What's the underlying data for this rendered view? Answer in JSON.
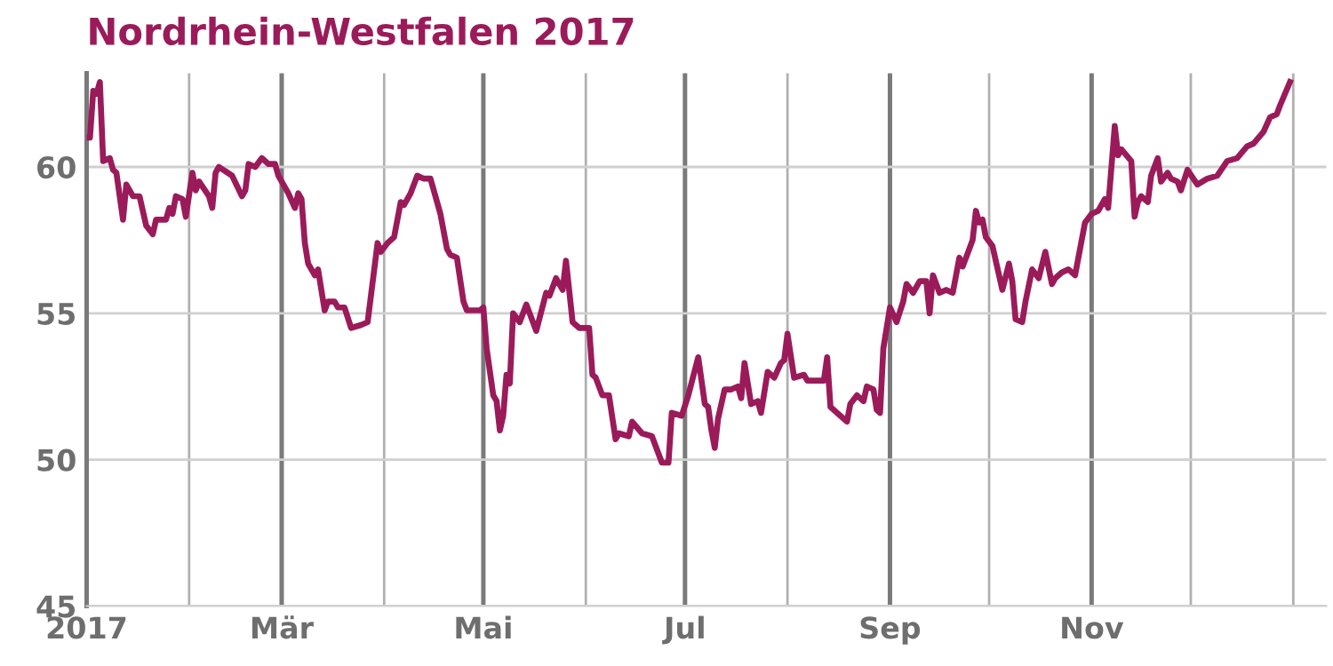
{
  "chart_data": {
    "type": "line",
    "title": "Nordrhein-Westfalen 2017",
    "x": [
      "2017-01-01",
      "2017-01-02",
      "2017-01-03",
      "2017-01-04",
      "2017-01-05",
      "2017-01-06",
      "2017-01-08",
      "2017-01-09",
      "2017-01-10",
      "2017-01-12",
      "2017-01-13",
      "2017-01-15",
      "2017-01-17",
      "2017-01-19",
      "2017-01-21",
      "2017-01-22",
      "2017-01-25",
      "2017-01-26",
      "2017-01-27",
      "2017-01-28",
      "2017-01-30",
      "2017-01-31",
      "2017-02-02",
      "2017-02-03",
      "2017-02-04",
      "2017-02-07",
      "2017-02-08",
      "2017-02-09",
      "2017-02-10",
      "2017-02-14",
      "2017-02-17",
      "2017-02-18",
      "2017-02-19",
      "2017-02-21",
      "2017-02-23",
      "2017-02-25",
      "2017-02-27",
      "2017-02-28",
      "2017-03-03",
      "2017-03-05",
      "2017-03-06",
      "2017-03-07",
      "2017-03-08",
      "2017-03-09",
      "2017-03-11",
      "2017-03-12",
      "2017-03-13",
      "2017-03-14",
      "2017-03-15",
      "2017-03-17",
      "2017-03-18",
      "2017-03-20",
      "2017-03-22",
      "2017-03-25",
      "2017-03-27",
      "2017-03-30",
      "2017-03-31",
      "2017-04-02",
      "2017-04-04",
      "2017-04-06",
      "2017-04-07",
      "2017-04-09",
      "2017-04-11",
      "2017-04-13",
      "2017-04-15",
      "2017-04-18",
      "2017-04-20",
      "2017-04-21",
      "2017-04-23",
      "2017-04-25",
      "2017-04-26",
      "2017-04-30",
      "2017-05-01",
      "2017-05-02",
      "2017-05-04",
      "2017-05-05",
      "2017-05-06",
      "2017-05-07",
      "2017-05-08",
      "2017-05-09",
      "2017-05-10",
      "2017-05-12",
      "2017-05-14",
      "2017-05-17",
      "2017-05-20",
      "2017-05-21",
      "2017-05-23",
      "2017-05-25",
      "2017-05-26",
      "2017-05-28",
      "2017-05-30",
      "2017-06-02",
      "2017-06-03",
      "2017-06-04",
      "2017-06-06",
      "2017-06-08",
      "2017-06-10",
      "2017-06-11",
      "2017-06-14",
      "2017-06-15",
      "2017-06-18",
      "2017-06-21",
      "2017-06-24",
      "2017-06-26",
      "2017-06-27",
      "2017-06-30",
      "2017-07-02",
      "2017-07-05",
      "2017-07-07",
      "2017-07-08",
      "2017-07-09",
      "2017-07-10",
      "2017-07-11",
      "2017-07-13",
      "2017-07-15",
      "2017-07-17",
      "2017-07-18",
      "2017-07-19",
      "2017-07-21",
      "2017-07-23",
      "2017-07-24",
      "2017-07-26",
      "2017-07-28",
      "2017-07-30",
      "2017-07-31",
      "2017-08-01",
      "2017-08-03",
      "2017-08-06",
      "2017-08-07",
      "2017-08-12",
      "2017-08-13",
      "2017-08-14",
      "2017-08-17",
      "2017-08-19",
      "2017-08-20",
      "2017-08-22",
      "2017-08-24",
      "2017-08-25",
      "2017-08-27",
      "2017-08-28",
      "2017-08-29",
      "2017-08-30",
      "2017-09-01",
      "2017-09-03",
      "2017-09-05",
      "2017-09-06",
      "2017-09-08",
      "2017-09-10",
      "2017-09-12",
      "2017-09-13",
      "2017-09-14",
      "2017-09-16",
      "2017-09-18",
      "2017-09-20",
      "2017-09-22",
      "2017-09-23",
      "2017-09-25",
      "2017-09-26",
      "2017-09-27",
      "2017-09-28",
      "2017-09-29",
      "2017-09-30",
      "2017-10-02",
      "2017-10-05",
      "2017-10-07",
      "2017-10-08",
      "2017-10-09",
      "2017-10-11",
      "2017-10-12",
      "2017-10-14",
      "2017-10-16",
      "2017-10-18",
      "2017-10-20",
      "2017-10-21",
      "2017-10-23",
      "2017-10-25",
      "2017-10-27",
      "2017-10-30",
      "2017-11-01",
      "2017-11-03",
      "2017-11-05",
      "2017-11-06",
      "2017-11-08",
      "2017-11-09",
      "2017-11-10",
      "2017-11-13",
      "2017-11-14",
      "2017-11-15",
      "2017-11-16",
      "2017-11-18",
      "2017-11-19",
      "2017-11-21",
      "2017-11-22",
      "2017-11-24",
      "2017-11-25",
      "2017-11-27",
      "2017-11-28",
      "2017-11-30",
      "2017-12-03",
      "2017-12-06",
      "2017-12-09",
      "2017-12-12",
      "2017-12-15",
      "2017-12-18",
      "2017-12-20",
      "2017-12-23",
      "2017-12-25",
      "2017-12-27",
      "2017-12-28",
      "2017-12-31"
    ],
    "series": [
      {
        "color": "#9b1b5a",
        "values": [
          61.0,
          61.0,
          62.6,
          62.5,
          62.9,
          60.2,
          60.3,
          59.9,
          59.8,
          58.2,
          59.4,
          59.0,
          59.0,
          58.0,
          57.7,
          58.2,
          58.2,
          58.6,
          58.4,
          59.0,
          58.9,
          58.3,
          59.8,
          59.2,
          59.5,
          59.0,
          58.6,
          59.8,
          60.0,
          59.7,
          59.0,
          59.2,
          60.1,
          60.0,
          60.3,
          60.1,
          60.1,
          59.7,
          59.1,
          58.6,
          59.1,
          58.9,
          57.4,
          56.7,
          56.3,
          56.5,
          55.8,
          55.1,
          55.4,
          55.4,
          55.2,
          55.2,
          54.5,
          54.6,
          54.7,
          57.4,
          57.1,
          57.4,
          57.6,
          58.8,
          58.7,
          59.1,
          59.7,
          59.6,
          59.6,
          58.4,
          57.2,
          57.0,
          56.9,
          55.4,
          55.1,
          55.1,
          55.2,
          53.8,
          52.2,
          52.0,
          51.0,
          51.5,
          52.9,
          52.6,
          55.0,
          54.7,
          55.3,
          54.4,
          55.7,
          55.6,
          56.2,
          55.8,
          56.8,
          54.7,
          54.5,
          54.5,
          52.9,
          52.8,
          52.2,
          52.2,
          50.7,
          50.9,
          50.8,
          51.3,
          50.9,
          50.8,
          49.9,
          49.9,
          51.6,
          51.5,
          52.2,
          53.5,
          51.9,
          51.8,
          51.0,
          50.4,
          51.4,
          52.4,
          52.4,
          52.5,
          52.1,
          53.3,
          51.9,
          52.0,
          51.6,
          53.0,
          52.8,
          53.3,
          53.4,
          54.3,
          52.8,
          52.9,
          52.7,
          52.7,
          53.5,
          51.8,
          51.5,
          51.3,
          51.9,
          52.2,
          52.0,
          52.5,
          52.4,
          51.7,
          51.6,
          53.8,
          55.2,
          54.7,
          55.4,
          56.0,
          55.7,
          56.1,
          56.1,
          55.0,
          56.3,
          55.7,
          55.8,
          55.7,
          56.9,
          56.6,
          57.2,
          57.5,
          58.5,
          58.1,
          58.2,
          57.6,
          57.3,
          55.8,
          56.7,
          56.1,
          54.8,
          54.7,
          55.4,
          56.5,
          56.2,
          57.1,
          56.0,
          56.2,
          56.4,
          56.5,
          56.3,
          58.1,
          58.4,
          58.5,
          58.9,
          58.6,
          61.4,
          60.4,
          60.6,
          60.2,
          58.3,
          58.8,
          59.0,
          58.8,
          59.7,
          60.3,
          59.5,
          59.8,
          59.6,
          59.5,
          59.2,
          59.9,
          59.4,
          59.6,
          59.7,
          60.2,
          60.3,
          60.7,
          60.8,
          61.2,
          61.7,
          61.8,
          62.1,
          62.9
        ]
      }
    ],
    "xlim": [
      "2017-01-01",
      "2018-01-11"
    ],
    "xticks": [
      {
        "value": "2017-01-01",
        "label": "2017"
      },
      {
        "value": "2017-02-01",
        "label": null
      },
      {
        "value": "2017-03-01",
        "label": "Mär"
      },
      {
        "value": "2017-04-01",
        "label": null
      },
      {
        "value": "2017-05-01",
        "label": "Mai"
      },
      {
        "value": "2017-06-01",
        "label": null
      },
      {
        "value": "2017-07-01",
        "label": "Jul"
      },
      {
        "value": "2017-08-01",
        "label": null
      },
      {
        "value": "2017-09-01",
        "label": "Sep"
      },
      {
        "value": "2017-10-01",
        "label": null
      },
      {
        "value": "2017-11-01",
        "label": "Nov"
      },
      {
        "value": "2017-12-01",
        "label": null
      },
      {
        "value": "2018-01-01",
        "label": null
      }
    ],
    "ylim": [
      45,
      63.2
    ],
    "yticks": [
      45,
      50,
      55,
      60
    ],
    "grid": true,
    "marker": "none",
    "line_style": "solid"
  }
}
